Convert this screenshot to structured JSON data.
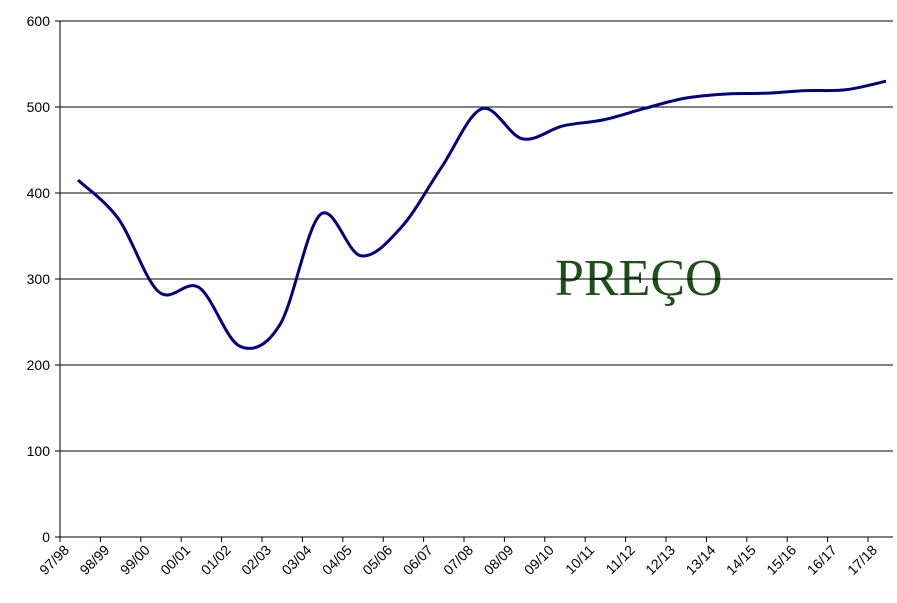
{
  "chart_data": {
    "type": "line",
    "categories": [
      "97/98",
      "98/99",
      "99/00",
      "00/01",
      "01/02",
      "02/03",
      "03/04",
      "04/05",
      "05/06",
      "06/07",
      "07/08",
      "08/09",
      "09/10",
      "10/11",
      "11/12",
      "12/13",
      "13/14",
      "14/15",
      "15/16",
      "16/17",
      "17/18"
    ],
    "series": [
      {
        "name": "PREÇO",
        "color": "#000080",
        "values": [
          415,
          370,
          285,
          290,
          222,
          247,
          375,
          327,
          360,
          430,
          498,
          463,
          478,
          485,
          498,
          510,
          515,
          516,
          519,
          520,
          530
        ]
      }
    ],
    "annotation": "PREÇO",
    "ylim": [
      0,
      600
    ],
    "yticks": [
      0,
      100,
      200,
      300,
      400,
      500,
      600
    ],
    "grid": true
  }
}
